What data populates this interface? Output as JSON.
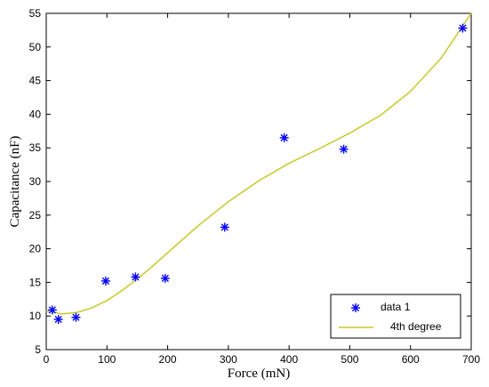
{
  "chart_data": {
    "type": "scatter",
    "xlabel": "Force (mN)",
    "ylabel": "Capacitance (nF)",
    "xlim": [
      0,
      700
    ],
    "ylim": [
      5,
      55
    ],
    "xticks": [
      0,
      100,
      200,
      300,
      400,
      500,
      600,
      700
    ],
    "yticks": [
      5,
      10,
      15,
      20,
      25,
      30,
      35,
      40,
      45,
      50,
      55
    ],
    "grid": false,
    "legend_position": "bottom-right",
    "series": [
      {
        "name": "data 1",
        "type": "scatter",
        "marker": "asterisk",
        "color": "#0000ff",
        "x": [
          10,
          20,
          49,
          98,
          147,
          196,
          294,
          392,
          490,
          686
        ],
        "y": [
          10.9,
          9.5,
          9.8,
          15.2,
          15.8,
          15.6,
          23.2,
          36.5,
          34.8,
          52.8
        ]
      },
      {
        "name": "4th degree",
        "type": "line",
        "color": "#c8c82a",
        "x": [
          0,
          25,
          50,
          75,
          100,
          125,
          150,
          175,
          200,
          250,
          300,
          350,
          400,
          450,
          500,
          550,
          600,
          650,
          700
        ],
        "y": [
          10.8,
          10.3,
          10.5,
          11.2,
          12.3,
          13.8,
          15.5,
          17.4,
          19.4,
          23.4,
          27.0,
          30.1,
          32.7,
          34.9,
          37.2,
          39.8,
          43.4,
          48.3,
          55.0
        ]
      }
    ]
  }
}
